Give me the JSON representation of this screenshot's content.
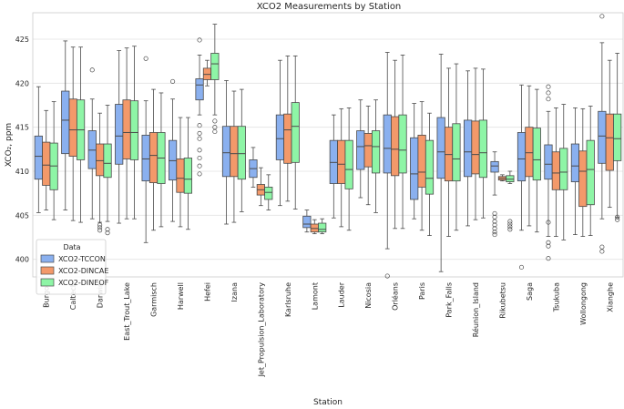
{
  "chart_data": {
    "type": "box",
    "title": "XCO2 Measurements by Station",
    "xlabel": "Station",
    "ylabel": "XCO₂, ppm",
    "ylim": [
      398,
      428
    ],
    "yticks": [
      400,
      405,
      410,
      415,
      420,
      425
    ],
    "grid": "horizontal",
    "legend": {
      "title": "Data",
      "placement": "lower-left"
    },
    "categories": [
      "Burgos",
      "Caltech",
      "Darwin",
      "East_Trout_Lake",
      "Garmisch",
      "Harwell",
      "Hefei",
      "Izana",
      "Jet_Propulsion_Laboratory",
      "Karlsruhe",
      "Lamont",
      "Lauder",
      "Nicosia",
      "Orléans",
      "Paris",
      "Park_Falls",
      "Réunion_Island",
      "Rikubetsu",
      "Saga",
      "Tsukuba",
      "Wollongong",
      "Xianghe"
    ],
    "series": [
      {
        "name": "XCO2-TCCON",
        "color": "#8ab0ef",
        "boxes": [
          {
            "lo": 405.3,
            "q1": 409.1,
            "med": 411.7,
            "q3": 414.0,
            "hi": 419.6,
            "out": []
          },
          {
            "lo": 405.6,
            "q1": 412.0,
            "med": 415.8,
            "q3": 419.1,
            "hi": 424.8,
            "out": []
          },
          {
            "lo": 404.6,
            "q1": 410.3,
            "med": 412.4,
            "q3": 414.6,
            "hi": 418.2,
            "out": [
              421.5
            ]
          },
          {
            "lo": 404.1,
            "q1": 410.8,
            "med": 414.0,
            "q3": 417.6,
            "hi": 423.7,
            "out": []
          },
          {
            "lo": 401.9,
            "q1": 408.9,
            "med": 411.4,
            "q3": 414.1,
            "hi": 418.0,
            "out": [
              422.8
            ]
          },
          {
            "lo": 404.3,
            "q1": 409.0,
            "med": 411.2,
            "q3": 413.5,
            "hi": 418.2,
            "out": [
              420.2
            ]
          },
          {
            "lo": 416.4,
            "q1": 418.1,
            "med": 419.8,
            "q3": 420.5,
            "hi": 423.2,
            "out": [
              424.9,
              415.2,
              414.3,
              413.7,
              412.4,
              411.5,
              410.6,
              409.7
            ]
          },
          {
            "lo": 404.0,
            "q1": 409.4,
            "med": 412.1,
            "q3": 415.1,
            "hi": 420.3,
            "out": []
          },
          {
            "lo": 408.2,
            "q1": 409.3,
            "med": 410.3,
            "q3": 411.3,
            "hi": 412.7,
            "out": []
          },
          {
            "lo": 406.1,
            "q1": 411.3,
            "med": 413.7,
            "q3": 416.4,
            "hi": 422.6,
            "out": []
          },
          {
            "lo": 403.1,
            "q1": 403.6,
            "med": 404.0,
            "q3": 404.9,
            "hi": 405.6,
            "out": []
          },
          {
            "lo": 404.7,
            "q1": 408.6,
            "med": 411.0,
            "q3": 413.5,
            "hi": 416.4,
            "out": []
          },
          {
            "lo": 407.0,
            "q1": 410.2,
            "med": 412.8,
            "q3": 414.6,
            "hi": 418.1,
            "out": []
          },
          {
            "lo": 401.2,
            "q1": 409.8,
            "med": 412.6,
            "q3": 416.4,
            "hi": 423.5,
            "out": [
              398.1
            ]
          },
          {
            "lo": 404.6,
            "q1": 406.8,
            "med": 409.7,
            "q3": 413.8,
            "hi": 417.7,
            "out": []
          },
          {
            "lo": 398.6,
            "q1": 409.2,
            "med": 412.2,
            "q3": 416.1,
            "hi": 423.3,
            "out": []
          },
          {
            "lo": 403.8,
            "q1": 409.4,
            "med": 412.2,
            "q3": 415.8,
            "hi": 421.4,
            "out": []
          },
          {
            "lo": 407.3,
            "q1": 409.9,
            "med": 410.6,
            "q3": 411.1,
            "hi": 412.2,
            "out": [
              405.2,
              404.8,
              404.3,
              403.9,
              403.5,
              403.1,
              402.8
            ]
          },
          {
            "lo": 403.3,
            "q1": 408.9,
            "med": 411.4,
            "q3": 414.4,
            "hi": 419.8,
            "out": [
              399.1
            ]
          },
          {
            "lo": 402.6,
            "q1": 409.1,
            "med": 410.8,
            "q3": 413.0,
            "hi": 416.8,
            "out": [
              419.6,
              418.9,
              418.2,
              404.2,
              401.9,
              401.5,
              400.1
            ]
          },
          {
            "lo": 402.8,
            "q1": 408.8,
            "med": 410.6,
            "q3": 413.1,
            "hi": 417.2,
            "out": []
          },
          {
            "lo": 404.6,
            "q1": 410.9,
            "med": 414.0,
            "q3": 416.8,
            "hi": 424.6,
            "out": [
              427.6,
              401.4,
              400.9
            ]
          }
        ]
      },
      {
        "name": "XCO2-DINCAE",
        "color": "#f3996a",
        "boxes": [
          {
            "lo": 405.6,
            "q1": 408.4,
            "med": 410.7,
            "q3": 413.3,
            "hi": 416.9,
            "out": []
          },
          {
            "lo": 404.4,
            "q1": 411.7,
            "med": 414.7,
            "q3": 418.2,
            "hi": 424.1,
            "out": []
          },
          {
            "lo": 404.2,
            "q1": 409.5,
            "med": 411.2,
            "q3": 413.1,
            "hi": 416.6,
            "out": [
              403.9,
              403.6,
              403.3
            ]
          },
          {
            "lo": 404.6,
            "q1": 411.4,
            "med": 414.4,
            "q3": 418.1,
            "hi": 424.0,
            "out": []
          },
          {
            "lo": 403.3,
            "q1": 408.7,
            "med": 411.8,
            "q3": 414.4,
            "hi": 419.3,
            "out": []
          },
          {
            "lo": 403.7,
            "q1": 407.6,
            "med": 409.2,
            "q3": 411.4,
            "hi": 416.1,
            "out": []
          },
          {
            "lo": 419.7,
            "q1": 420.4,
            "med": 421.0,
            "q3": 421.7,
            "hi": 422.6,
            "out": []
          },
          {
            "lo": 404.2,
            "q1": 409.4,
            "med": 412.0,
            "q3": 415.1,
            "hi": 419.1,
            "out": []
          },
          {
            "lo": 406.1,
            "q1": 407.3,
            "med": 407.9,
            "q3": 408.5,
            "hi": 410.4,
            "out": []
          },
          {
            "lo": 406.6,
            "q1": 410.9,
            "med": 414.7,
            "q3": 416.5,
            "hi": 423.1,
            "out": []
          },
          {
            "lo": 402.9,
            "q1": 403.1,
            "med": 403.5,
            "q3": 404.0,
            "hi": 404.5,
            "out": []
          },
          {
            "lo": 403.7,
            "q1": 408.6,
            "med": 410.8,
            "q3": 413.5,
            "hi": 417.1,
            "out": []
          },
          {
            "lo": 406.2,
            "q1": 410.5,
            "med": 412.9,
            "q3": 414.3,
            "hi": 417.4,
            "out": []
          },
          {
            "lo": 403.5,
            "q1": 409.5,
            "med": 412.5,
            "q3": 416.2,
            "hi": 422.6,
            "out": []
          },
          {
            "lo": 403.3,
            "q1": 408.2,
            "med": 409.9,
            "q3": 414.1,
            "hi": 417.9,
            "out": []
          },
          {
            "lo": 402.6,
            "q1": 408.9,
            "med": 411.9,
            "q3": 415.0,
            "hi": 421.7,
            "out": []
          },
          {
            "lo": 404.5,
            "q1": 409.7,
            "med": 411.9,
            "q3": 415.7,
            "hi": 421.7,
            "out": []
          },
          {
            "lo": 408.9,
            "q1": 409.0,
            "med": 409.2,
            "q3": 409.4,
            "hi": 409.6,
            "out": []
          },
          {
            "lo": 403.8,
            "q1": 409.4,
            "med": 412.1,
            "q3": 415.0,
            "hi": 419.7,
            "out": []
          },
          {
            "lo": 402.6,
            "q1": 407.9,
            "med": 409.8,
            "q3": 412.2,
            "hi": 417.2,
            "out": []
          },
          {
            "lo": 402.6,
            "q1": 406.0,
            "med": 410.0,
            "q3": 412.3,
            "hi": 417.1,
            "out": []
          },
          {
            "lo": 405.9,
            "q1": 410.1,
            "med": 413.8,
            "q3": 416.5,
            "hi": 422.6,
            "out": []
          }
        ]
      },
      {
        "name": "XCO2-DINEOF",
        "color": "#8ef5a6",
        "boxes": [
          {
            "lo": 404.5,
            "q1": 407.9,
            "med": 410.6,
            "q3": 413.2,
            "hi": 417.9,
            "out": []
          },
          {
            "lo": 404.2,
            "q1": 411.3,
            "med": 414.7,
            "q3": 418.1,
            "hi": 424.1,
            "out": []
          },
          {
            "lo": 404.3,
            "q1": 409.3,
            "med": 410.9,
            "q3": 413.1,
            "hi": 417.5,
            "out": [
              403.4,
              403.0
            ]
          },
          {
            "lo": 404.6,
            "q1": 411.3,
            "med": 414.4,
            "q3": 418.0,
            "hi": 424.2,
            "out": []
          },
          {
            "lo": 403.7,
            "q1": 408.6,
            "med": 411.5,
            "q3": 414.4,
            "hi": 418.9,
            "out": []
          },
          {
            "lo": 403.4,
            "q1": 407.5,
            "med": 409.1,
            "q3": 411.5,
            "hi": 416.1,
            "out": []
          },
          {
            "lo": 416.4,
            "q1": 420.4,
            "med": 422.2,
            "q3": 423.4,
            "hi": 426.7,
            "out": [
              415.7,
              415.0,
              414.5
            ]
          },
          {
            "lo": 405.4,
            "q1": 409.1,
            "med": 412.0,
            "q3": 415.1,
            "hi": 419.3,
            "out": []
          },
          {
            "lo": 405.6,
            "q1": 406.8,
            "med": 407.6,
            "q3": 408.2,
            "hi": 409.6,
            "out": []
          },
          {
            "lo": 405.7,
            "q1": 411.0,
            "med": 415.1,
            "q3": 417.8,
            "hi": 423.1,
            "out": []
          },
          {
            "lo": 402.9,
            "q1": 403.1,
            "med": 403.4,
            "q3": 404.1,
            "hi": 404.6,
            "out": []
          },
          {
            "lo": 403.3,
            "q1": 408.0,
            "med": 410.2,
            "q3": 413.5,
            "hi": 417.2,
            "out": []
          },
          {
            "lo": 405.3,
            "q1": 409.8,
            "med": 412.8,
            "q3": 414.6,
            "hi": 418.1,
            "out": []
          },
          {
            "lo": 403.5,
            "q1": 409.8,
            "med": 412.4,
            "q3": 416.4,
            "hi": 423.2,
            "out": []
          },
          {
            "lo": 402.7,
            "q1": 407.4,
            "med": 409.2,
            "q3": 413.5,
            "hi": 416.6,
            "out": []
          },
          {
            "lo": 403.3,
            "q1": 408.9,
            "med": 411.4,
            "q3": 415.4,
            "hi": 422.2,
            "out": []
          },
          {
            "lo": 404.7,
            "q1": 409.3,
            "med": 412.1,
            "q3": 415.8,
            "hi": 421.6,
            "out": []
          },
          {
            "lo": 408.6,
            "q1": 408.8,
            "med": 409.1,
            "q3": 409.5,
            "hi": 410.0,
            "out": [
              404.3,
              404.0,
              403.7,
              403.4
            ]
          },
          {
            "lo": 403.1,
            "q1": 409.0,
            "med": 411.3,
            "q3": 414.9,
            "hi": 419.3,
            "out": []
          },
          {
            "lo": 402.2,
            "q1": 407.9,
            "med": 409.9,
            "q3": 412.6,
            "hi": 417.6,
            "out": []
          },
          {
            "lo": 402.7,
            "q1": 406.2,
            "med": 410.2,
            "q3": 413.5,
            "hi": 417.4,
            "out": []
          },
          {
            "lo": 404.8,
            "q1": 411.2,
            "med": 413.7,
            "q3": 416.5,
            "hi": 423.4,
            "out": [
              404.8,
              404.5
            ]
          }
        ]
      }
    ]
  }
}
